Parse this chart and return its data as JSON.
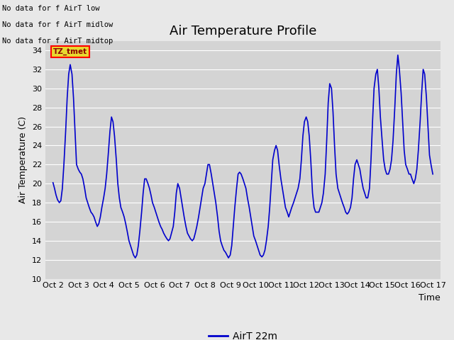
{
  "title": "Air Temperature Profile",
  "xlabel": "Time",
  "ylabel": "Air Temperature (C)",
  "legend_label": "AirT 22m",
  "annotations": [
    "No data for f AirT low",
    "No data for f AirT midlow",
    "No data for f AirT midtop"
  ],
  "tz_label": "TZ_tmet",
  "ylim": [
    10,
    35
  ],
  "yticks": [
    10,
    12,
    14,
    16,
    18,
    20,
    22,
    24,
    26,
    28,
    30,
    32,
    34
  ],
  "line_color": "#0000cc",
  "bg_color": "#e8e8e8",
  "plot_bg_color": "#d4d4d4",
  "title_fontsize": 13,
  "axis_fontsize": 9,
  "tick_fontsize": 8,
  "x_dates": [
    "Oct 2",
    "Oct 3",
    "Oct 4",
    "Oct 5",
    "Oct 6",
    "Oct 7",
    "Oct 8",
    "Oct 9",
    "Oct 10",
    "Oct 11",
    "Oct 12",
    "Oct 13",
    "Oct 14",
    "Oct 15",
    "Oct 16",
    "Oct 17"
  ],
  "x_values": [
    0,
    1,
    2,
    3,
    4,
    5,
    6,
    7,
    8,
    9,
    10,
    11,
    12,
    13,
    14,
    15
  ],
  "data_x": [
    0.0,
    0.06,
    0.12,
    0.18,
    0.25,
    0.31,
    0.37,
    0.43,
    0.5,
    0.56,
    0.62,
    0.68,
    0.75,
    0.81,
    0.87,
    0.93,
    1.0,
    1.06,
    1.12,
    1.18,
    1.25,
    1.31,
    1.37,
    1.43,
    1.5,
    1.56,
    1.62,
    1.68,
    1.75,
    1.81,
    1.87,
    1.93,
    2.0,
    2.06,
    2.12,
    2.18,
    2.25,
    2.31,
    2.37,
    2.43,
    2.5,
    2.56,
    2.62,
    2.68,
    2.75,
    2.81,
    2.87,
    2.93,
    3.0,
    3.06,
    3.12,
    3.18,
    3.25,
    3.31,
    3.37,
    3.43,
    3.5,
    3.56,
    3.62,
    3.68,
    3.75,
    3.81,
    3.87,
    3.93,
    4.0,
    4.06,
    4.12,
    4.18,
    4.25,
    4.31,
    4.37,
    4.43,
    4.5,
    4.56,
    4.62,
    4.68,
    4.75,
    4.81,
    4.87,
    4.93,
    5.0,
    5.06,
    5.12,
    5.18,
    5.25,
    5.31,
    5.37,
    5.43,
    5.5,
    5.56,
    5.62,
    5.68,
    5.75,
    5.81,
    5.87,
    5.93,
    6.0,
    6.06,
    6.12,
    6.18,
    6.25,
    6.31,
    6.37,
    6.43,
    6.5,
    6.56,
    6.62,
    6.68,
    6.75,
    6.81,
    6.87,
    6.93,
    7.0,
    7.06,
    7.12,
    7.18,
    7.25,
    7.31,
    7.37,
    7.43,
    7.5,
    7.56,
    7.62,
    7.68,
    7.75,
    7.81,
    7.87,
    7.93,
    8.0,
    8.06,
    8.12,
    8.18,
    8.25,
    8.31,
    8.37,
    8.43,
    8.5,
    8.56,
    8.62,
    8.68,
    8.75,
    8.81,
    8.87,
    8.93,
    9.0,
    9.06,
    9.12,
    9.18,
    9.25,
    9.31,
    9.37,
    9.43,
    9.5,
    9.56,
    9.62,
    9.68,
    9.75,
    9.81,
    9.87,
    9.93,
    10.0,
    10.06,
    10.12,
    10.18,
    10.25,
    10.31,
    10.37,
    10.43,
    10.5,
    10.56,
    10.62,
    10.68,
    10.75,
    10.81,
    10.87,
    10.93,
    11.0,
    11.06,
    11.12,
    11.18,
    11.25,
    11.31,
    11.37,
    11.43,
    11.5,
    11.56,
    11.62,
    11.68,
    11.75,
    11.81,
    11.87,
    11.93,
    12.0,
    12.06,
    12.12,
    12.18,
    12.25,
    12.31,
    12.37,
    12.43,
    12.5,
    12.56,
    12.62,
    12.68,
    12.75,
    12.81,
    12.87,
    12.93,
    13.0,
    13.06,
    13.12,
    13.18,
    13.25,
    13.31,
    13.37,
    13.43,
    13.5,
    13.56,
    13.62,
    13.68,
    13.75,
    13.81,
    13.87,
    13.93,
    14.0,
    14.06,
    14.12,
    14.18,
    14.25,
    14.31,
    14.37,
    14.43,
    14.5,
    14.56,
    14.62,
    14.68,
    14.75,
    14.81,
    14.87,
    14.93,
    15.0
  ],
  "data_y": [
    20.1,
    19.5,
    18.8,
    18.3,
    18.0,
    18.2,
    19.5,
    22.0,
    25.5,
    29.0,
    31.5,
    32.5,
    31.5,
    29.0,
    25.5,
    22.0,
    21.5,
    21.2,
    21.0,
    20.5,
    19.5,
    18.5,
    18.0,
    17.5,
    17.0,
    16.8,
    16.5,
    16.0,
    15.5,
    15.8,
    16.5,
    17.5,
    18.5,
    19.5,
    21.0,
    23.0,
    25.5,
    27.0,
    26.5,
    25.0,
    22.5,
    20.0,
    18.5,
    17.5,
    17.0,
    16.5,
    15.8,
    15.0,
    14.0,
    13.5,
    13.0,
    12.5,
    12.2,
    12.5,
    13.5,
    15.0,
    17.0,
    19.0,
    20.5,
    20.5,
    20.0,
    19.5,
    18.8,
    18.0,
    17.5,
    17.0,
    16.5,
    16.0,
    15.5,
    15.2,
    14.8,
    14.5,
    14.2,
    14.0,
    14.2,
    14.8,
    15.5,
    17.0,
    19.0,
    20.0,
    19.5,
    18.5,
    17.5,
    16.5,
    15.5,
    14.8,
    14.5,
    14.2,
    14.0,
    14.2,
    14.8,
    15.5,
    16.5,
    17.5,
    18.5,
    19.5,
    20.0,
    21.0,
    22.0,
    22.0,
    21.0,
    20.0,
    19.0,
    18.0,
    16.5,
    15.0,
    14.0,
    13.5,
    13.0,
    12.8,
    12.5,
    12.2,
    12.5,
    13.5,
    15.5,
    17.5,
    19.5,
    21.0,
    21.2,
    21.0,
    20.5,
    20.0,
    19.5,
    18.5,
    17.5,
    16.5,
    15.5,
    14.5,
    14.0,
    13.5,
    13.0,
    12.5,
    12.3,
    12.5,
    13.0,
    14.0,
    15.5,
    17.5,
    20.0,
    22.5,
    23.5,
    24.0,
    23.5,
    22.0,
    20.5,
    19.5,
    18.5,
    17.5,
    17.0,
    16.5,
    17.0,
    17.5,
    18.0,
    18.5,
    19.0,
    19.5,
    20.5,
    22.5,
    25.0,
    26.5,
    27.0,
    26.5,
    25.0,
    22.5,
    19.0,
    17.5,
    17.0,
    17.0,
    17.0,
    17.5,
    18.0,
    19.0,
    21.0,
    24.5,
    28.5,
    30.5,
    30.0,
    27.5,
    24.0,
    21.0,
    19.5,
    19.0,
    18.5,
    18.0,
    17.5,
    17.0,
    16.8,
    17.0,
    17.5,
    18.5,
    20.5,
    22.0,
    22.5,
    22.0,
    21.5,
    20.5,
    19.5,
    19.0,
    18.5,
    18.5,
    19.5,
    22.5,
    26.5,
    30.0,
    31.5,
    32.0,
    30.0,
    27.0,
    24.5,
    22.5,
    21.5,
    21.0,
    21.0,
    21.5,
    22.5,
    24.5,
    28.0,
    31.5,
    33.5,
    32.0,
    29.5,
    26.5,
    23.5,
    22.0,
    21.5,
    21.0,
    21.0,
    20.5,
    20.0,
    20.5,
    21.5,
    23.5,
    26.5,
    29.5,
    32.0,
    31.5,
    29.0,
    26.0,
    23.0,
    22.0,
    21.0
  ]
}
